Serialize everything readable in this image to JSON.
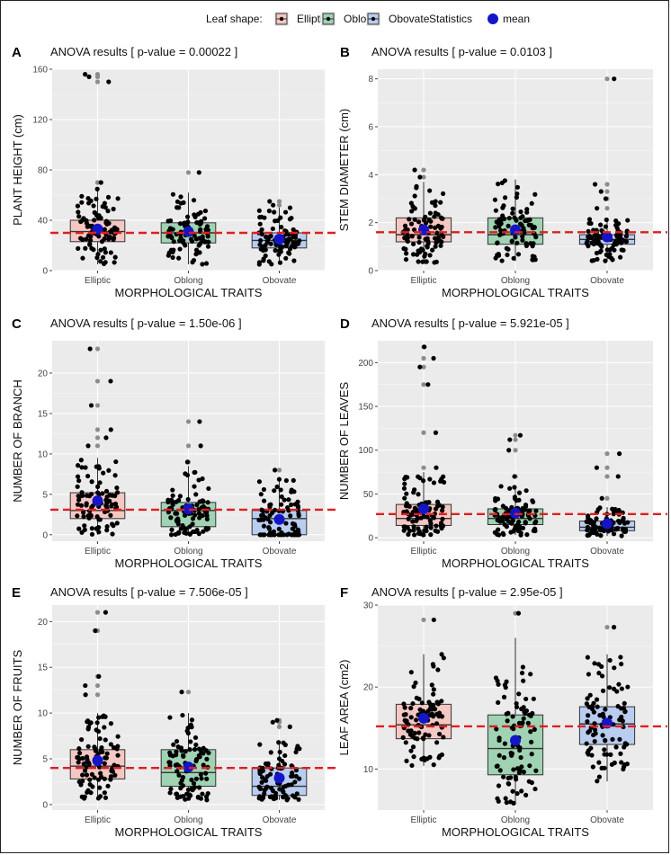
{
  "legend": {
    "fill_title": "Leaf shape:",
    "fill_items": [
      {
        "label": "Elliptic",
        "color": "#f4c7c3"
      },
      {
        "label": "Oblong",
        "color": "#9fd3b3"
      },
      {
        "label": "Obovate",
        "color": "#b9cdf0"
      }
    ],
    "stat_title": "Statistics",
    "stat_item": {
      "label": "mean",
      "color": "#1515c8"
    }
  },
  "colors": {
    "panel_bg": "#ebebeb",
    "grid": "#ffffff",
    "ref_line": "#dd1f1f",
    "point": "#000000",
    "outlier": "#8c8c8c",
    "mean": "#1515c8",
    "box_stroke": "#333333"
  },
  "chart_data": [
    {
      "panel": "A",
      "type": "box",
      "title": "ANOVA results [ p-value = 0.00022 ]",
      "xlabel": "MORPHOLOGICAL TRAITS",
      "ylabel": "PLANT HEIGHT (cm)",
      "categories": [
        "Elliptic",
        "Oblong",
        "Obovate"
      ],
      "ylim": [
        0,
        160
      ],
      "yticks": [
        0,
        40,
        80,
        120,
        160
      ],
      "ref_line": 30,
      "series": [
        {
          "name": "Elliptic",
          "q1": 23,
          "median": 31,
          "q3": 40,
          "whisker_low": 5,
          "whisker_high": 65,
          "mean": 33,
          "outliers": [
            70,
            150,
            154,
            156
          ],
          "n": 90
        },
        {
          "name": "Oblong",
          "q1": 22,
          "median": 30,
          "q3": 38,
          "whisker_low": 5,
          "whisker_high": 62,
          "mean": 31,
          "outliers": [
            78
          ],
          "n": 90
        },
        {
          "name": "Obovate",
          "q1": 18,
          "median": 24,
          "q3": 30,
          "whisker_low": 5,
          "whisker_high": 50,
          "mean": 25,
          "outliers": [
            52,
            55
          ],
          "n": 90
        }
      ]
    },
    {
      "panel": "B",
      "type": "box",
      "title": "ANOVA results [ p-value = 0.0103 ]",
      "xlabel": "MORPHOLOGICAL TRAITS",
      "ylabel": "STEM DIAMETER (cm)",
      "categories": [
        "Elliptic",
        "Oblong",
        "Obovate"
      ],
      "ylim": [
        0,
        8.4
      ],
      "yticks": [
        0,
        2,
        4,
        6,
        8
      ],
      "ref_line": 1.6,
      "series": [
        {
          "name": "Elliptic",
          "q1": 1.2,
          "median": 1.5,
          "q3": 2.2,
          "whisker_low": 0.3,
          "whisker_high": 3.7,
          "mean": 1.7,
          "outliers": [
            3.9,
            4.2
          ],
          "n": 90
        },
        {
          "name": "Oblong",
          "q1": 1.1,
          "median": 1.5,
          "q3": 2.2,
          "whisker_low": 0.4,
          "whisker_high": 3.8,
          "mean": 1.7,
          "outliers": [],
          "n": 90
        },
        {
          "name": "Obovate",
          "q1": 1.1,
          "median": 1.3,
          "q3": 1.5,
          "whisker_low": 0.4,
          "whisker_high": 2.2,
          "mean": 1.4,
          "outliers": [
            2.6,
            3.0,
            3.3,
            3.6,
            8.0
          ],
          "n": 90
        }
      ]
    },
    {
      "panel": "C",
      "type": "box",
      "title": "ANOVA results [ p-value = 1.50e-06 ]",
      "xlabel": "MORPHOLOGICAL TRAITS",
      "ylabel": "NUMBER OF BRANCH",
      "categories": [
        "Elliptic",
        "Oblong",
        "Obovate"
      ],
      "ylim": [
        -0.8,
        24
      ],
      "yticks": [
        0,
        5,
        10,
        15,
        20
      ],
      "ref_line": 3.1,
      "series": [
        {
          "name": "Elliptic",
          "q1": 2,
          "median": 3,
          "q3": 5.2,
          "whisker_low": 0,
          "whisker_high": 9.5,
          "mean": 4.2,
          "outliers": [
            11,
            12,
            13,
            16,
            19,
            23
          ],
          "n": 90
        },
        {
          "name": "Oblong",
          "q1": 1,
          "median": 3,
          "q3": 4,
          "whisker_low": 0,
          "whisker_high": 8.5,
          "mean": 3.2,
          "outliers": [
            9,
            11,
            14
          ],
          "n": 90
        },
        {
          "name": "Obovate",
          "q1": 0,
          "median": 2,
          "q3": 3,
          "whisker_low": 0,
          "whisker_high": 7,
          "mean": 1.9,
          "outliers": [
            8
          ],
          "n": 90
        }
      ]
    },
    {
      "panel": "D",
      "type": "box",
      "title": "ANOVA results [ p-value = 5.921e-05 ]",
      "xlabel": "MORPHOLOGICAL TRAITS",
      "ylabel": "NUMBER OF LEAVES",
      "categories": [
        "Elliptic",
        "Oblong",
        "Obovate"
      ],
      "ylim": [
        -4,
        225
      ],
      "yticks": [
        0,
        50,
        100,
        150,
        200
      ],
      "ref_line": 27,
      "series": [
        {
          "name": "Elliptic",
          "q1": 14,
          "median": 22,
          "q3": 38,
          "whisker_low": 3,
          "whisker_high": 75,
          "mean": 33,
          "outliers": [
            80,
            120,
            175,
            195,
            205,
            218
          ],
          "n": 90
        },
        {
          "name": "Oblong",
          "q1": 15,
          "median": 22,
          "q3": 33,
          "whisker_low": 3,
          "whisker_high": 60,
          "mean": 28,
          "outliers": [
            70,
            100,
            112,
            117
          ],
          "n": 90
        },
        {
          "name": "Obovate",
          "q1": 8,
          "median": 12,
          "q3": 19,
          "whisker_low": 2,
          "whisker_high": 35,
          "mean": 16,
          "outliers": [
            45,
            70,
            80,
            96
          ],
          "n": 90
        }
      ]
    },
    {
      "panel": "E",
      "type": "box",
      "title": "ANOVA results [ p-value = 7.506e-05 ]",
      "xlabel": "MORPHOLOGICAL TRAITS",
      "ylabel": "NUMBER OF FRUITS",
      "categories": [
        "Elliptic",
        "Oblong",
        "Obovate"
      ],
      "ylim": [
        -0.6,
        21.8
      ],
      "yticks": [
        0,
        5,
        10,
        15,
        20
      ],
      "ref_line": 4,
      "series": [
        {
          "name": "Elliptic",
          "q1": 2.8,
          "median": 4.2,
          "q3": 6,
          "whisker_low": 0.5,
          "whisker_high": 10,
          "mean": 4.8,
          "outliers": [
            12,
            13,
            14,
            19,
            21
          ],
          "n": 90
        },
        {
          "name": "Oblong",
          "q1": 2,
          "median": 3.5,
          "q3": 6,
          "whisker_low": 0.5,
          "whisker_high": 10,
          "mean": 4.1,
          "outliers": [
            12.3
          ],
          "n": 90
        },
        {
          "name": "Obovate",
          "q1": 1,
          "median": 2,
          "q3": 4,
          "whisker_low": 0.5,
          "whisker_high": 7,
          "mean": 2.9,
          "outliers": [
            8.5,
            9,
            9.2
          ],
          "n": 90
        }
      ]
    },
    {
      "panel": "F",
      "type": "box",
      "title": "ANOVA results [ p-value = 2.95e-05 ]",
      "xlabel": "MORPHOLOGICAL TRAITS",
      "ylabel": "LEAF AREA (cm2)",
      "categories": [
        "Elliptic",
        "Oblong",
        "Obovate"
      ],
      "ylim": [
        5,
        30
      ],
      "yticks": [
        10,
        20,
        30
      ],
      "ref_line": 15.2,
      "series": [
        {
          "name": "Elliptic",
          "q1": 13.7,
          "median": 15.4,
          "q3": 17.9,
          "whisker_low": 10.4,
          "whisker_high": 24,
          "mean": 16.2,
          "outliers": [
            28.2
          ],
          "n": 90
        },
        {
          "name": "Oblong",
          "q1": 9.3,
          "median": 12.5,
          "q3": 16.6,
          "whisker_low": 5.8,
          "whisker_high": 26,
          "mean": 13.5,
          "outliers": [
            29
          ],
          "n": 90
        },
        {
          "name": "Obovate",
          "q1": 13,
          "median": 15.5,
          "q3": 17.6,
          "whisker_low": 8.5,
          "whisker_high": 24,
          "mean": 15.6,
          "outliers": [
            27.3
          ],
          "n": 90
        }
      ]
    }
  ]
}
